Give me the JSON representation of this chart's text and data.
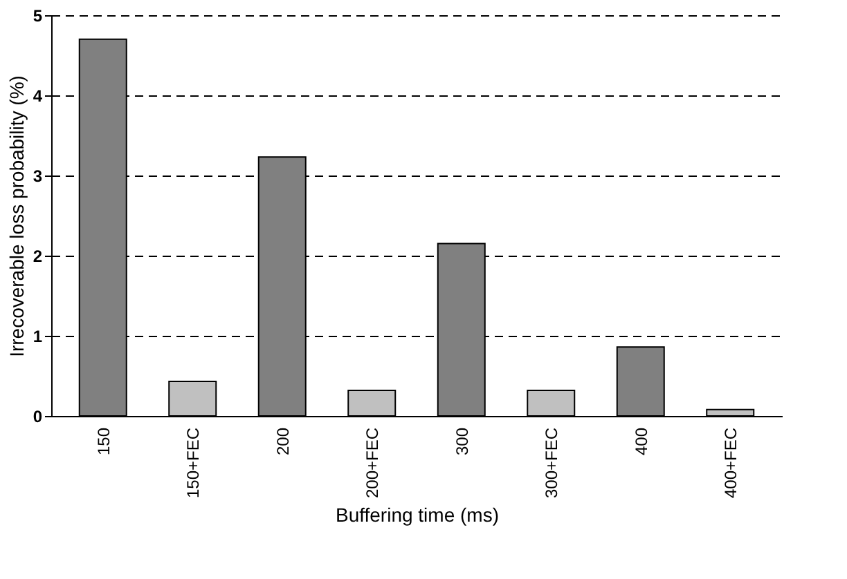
{
  "chart_data": {
    "type": "bar",
    "xlabel": "Buffering time (ms)",
    "ylabel": "Irrecoverable loss probability (%)",
    "categories": [
      "150",
      "150+FEC",
      "200",
      "200+FEC",
      "300",
      "300+FEC",
      "400",
      "400+FEC"
    ],
    "values": [
      4.7,
      0.43,
      3.23,
      0.32,
      2.15,
      0.32,
      0.86,
      0.08
    ],
    "colors": [
      "#808080",
      "#c0c0c0",
      "#808080",
      "#c0c0c0",
      "#808080",
      "#c0c0c0",
      "#808080",
      "#c0c0c0"
    ],
    "ylim": [
      0,
      5
    ],
    "yticks": [
      0,
      1,
      2,
      3,
      4,
      5
    ],
    "grid": "y",
    "legend": false
  }
}
